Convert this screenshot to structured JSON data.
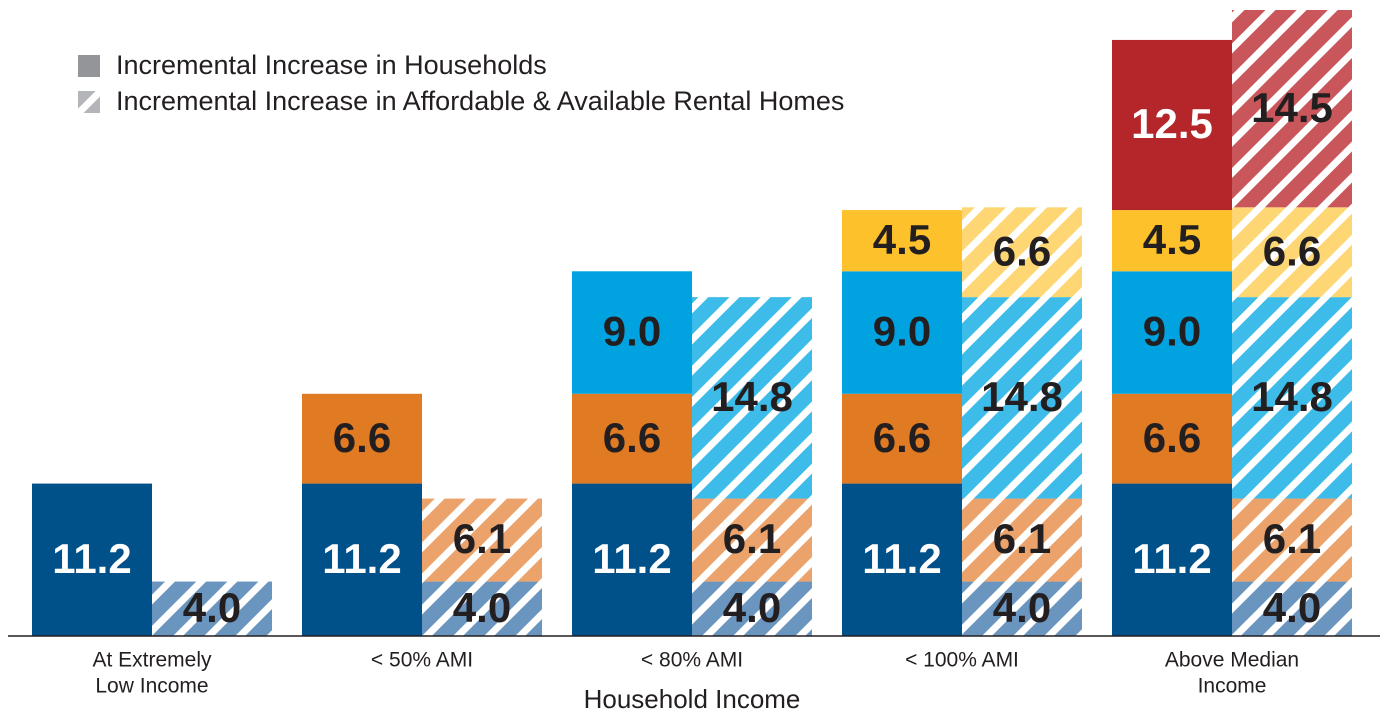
{
  "chart_data": {
    "type": "grouped_stacked_bar",
    "xlabel": "Household Income",
    "categories": [
      [
        "At Extremely",
        "Low Income"
      ],
      [
        "< 50% AMI"
      ],
      [
        "< 80% AMI"
      ],
      [
        "< 100% AMI"
      ],
      [
        "Above Median",
        "Income"
      ]
    ],
    "legend_position": "upper left",
    "series": [
      {
        "name": "Incremental Increase in Households",
        "pattern": "solid",
        "legend_color": "#939598",
        "segments": [
          {
            "color": "#00508a",
            "label_color": "#ffffff",
            "values": [
              11.2,
              11.2,
              11.2,
              11.2,
              11.2
            ],
            "value_labels": [
              "11.2",
              "11.2",
              "11.2",
              "11.2",
              "11.2"
            ]
          },
          {
            "color": "#e07b24",
            "label_color": "#231f20",
            "values": [
              null,
              6.6,
              6.6,
              6.6,
              6.6
            ],
            "value_labels": [
              null,
              "6.6",
              "6.6",
              "6.6",
              "6.6"
            ]
          },
          {
            "color": "#00a3e0",
            "label_color": "#231f20",
            "values": [
              null,
              null,
              9.0,
              9.0,
              9.0
            ],
            "value_labels": [
              null,
              null,
              "9.0",
              "9.0",
              "9.0"
            ]
          },
          {
            "color": "#fdc12b",
            "label_color": "#231f20",
            "values": [
              null,
              null,
              null,
              4.5,
              4.5
            ],
            "value_labels": [
              null,
              null,
              null,
              "4.5",
              "4.5"
            ]
          },
          {
            "color": "#b5262b",
            "label_color": "#ffffff",
            "values": [
              null,
              null,
              null,
              null,
              12.5
            ],
            "value_labels": [
              null,
              null,
              null,
              null,
              "12.5"
            ]
          }
        ]
      },
      {
        "name": "Incremental Increase in Affordable & Available Rental Homes",
        "pattern": "hatch",
        "legend_color": "#b3b5b8",
        "segments": [
          {
            "color": "#6a95bf",
            "label_color": "#231f20",
            "values": [
              4.0,
              4.0,
              4.0,
              4.0,
              4.0
            ],
            "value_labels": [
              "4.0",
              "4.0",
              "4.0",
              "4.0",
              "4.0"
            ]
          },
          {
            "color": "#eba36b",
            "label_color": "#231f20",
            "values": [
              null,
              6.1,
              6.1,
              6.1,
              6.1
            ],
            "value_labels": [
              null,
              "6.1",
              "6.1",
              "6.1",
              "6.1"
            ]
          },
          {
            "color": "#3dbbe9",
            "label_color": "#231f20",
            "values": [
              null,
              null,
              14.8,
              14.8,
              14.8
            ],
            "value_labels": [
              null,
              null,
              "14.8",
              "14.8",
              "14.8"
            ]
          },
          {
            "color": "#fed774",
            "label_color": "#231f20",
            "values": [
              null,
              null,
              null,
              6.6,
              6.6
            ],
            "value_labels": [
              null,
              null,
              null,
              "6.6",
              "6.6"
            ]
          },
          {
            "color": "#c9565b",
            "label_color": "#231f20",
            "values": [
              null,
              null,
              null,
              null,
              14.5
            ],
            "value_labels": [
              null,
              null,
              null,
              null,
              "14.5"
            ]
          }
        ]
      }
    ]
  }
}
